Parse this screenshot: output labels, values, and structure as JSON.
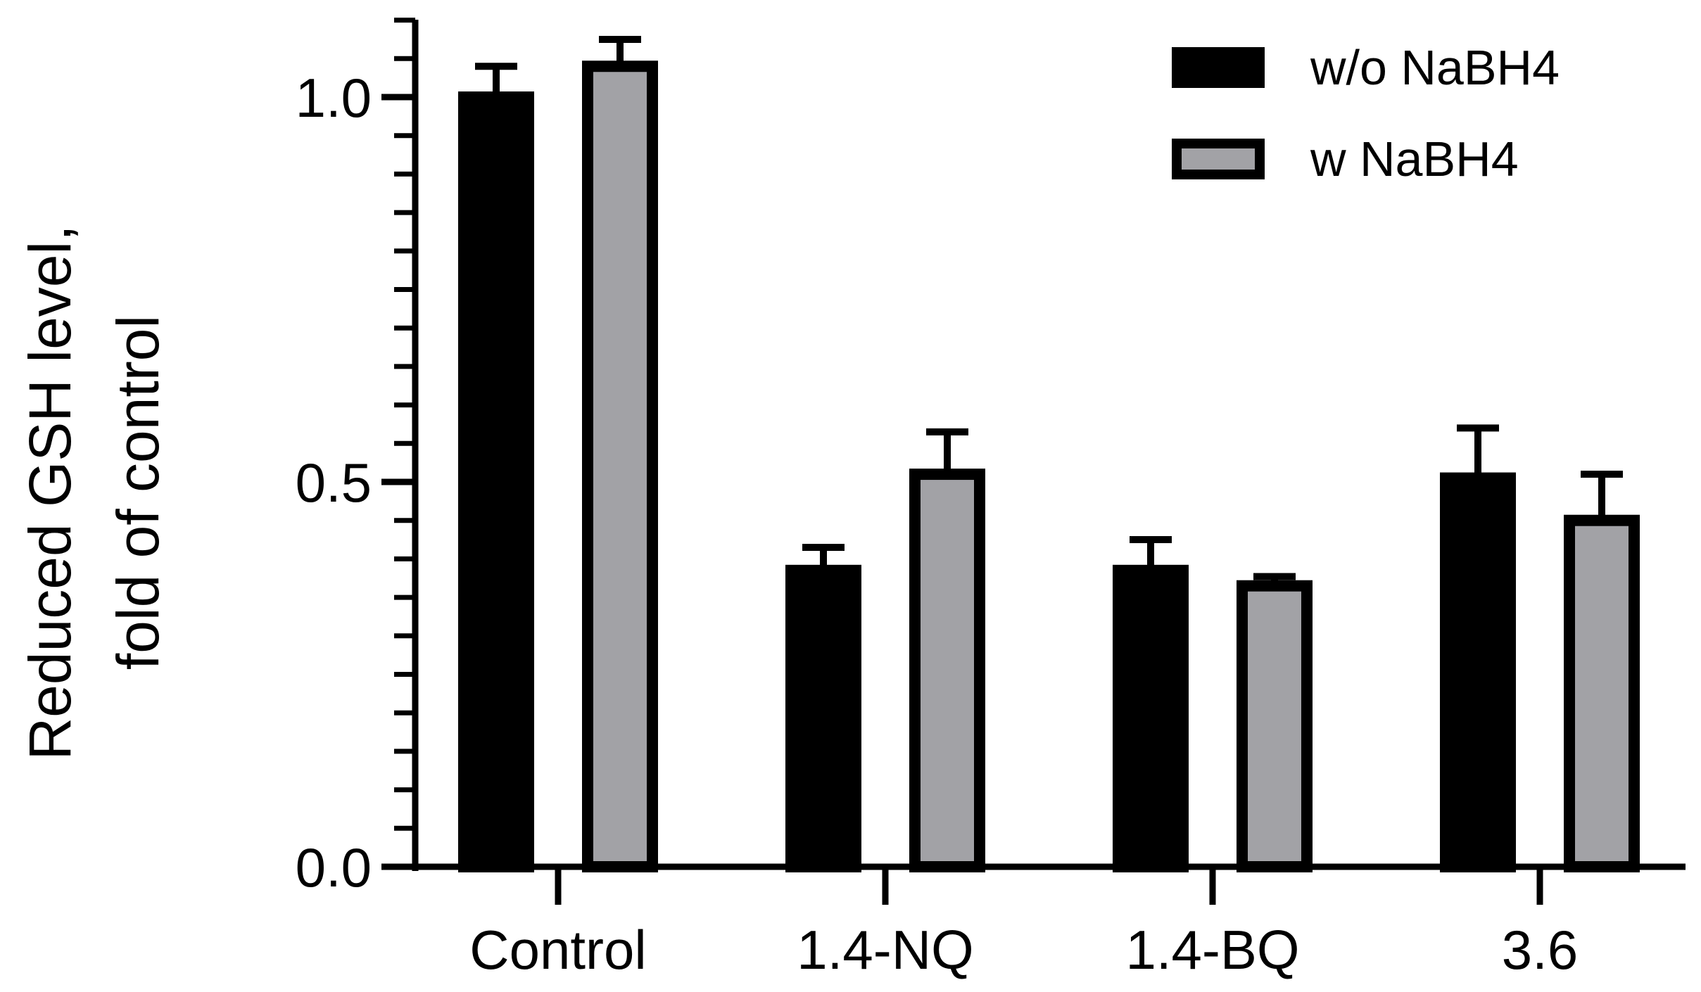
{
  "chart_data": {
    "type": "bar",
    "title": "",
    "xlabel": "",
    "ylabel_lines": [
      "Reduced GSH level,",
      "fold of control"
    ],
    "ylim": [
      0,
      1.1
    ],
    "major_ticks": [
      0.0,
      0.5,
      1.0
    ],
    "major_tick_labels": [
      "0.0",
      "0.5",
      "1.0"
    ],
    "minor_tick_step": 0.05,
    "categories": [
      "Control",
      "1.4-NQ",
      "1.4-BQ",
      "3.6"
    ],
    "series": [
      {
        "name": "w/o NaBH4",
        "color": "#000000",
        "values": [
          1.0,
          0.385,
          0.385,
          0.505
        ],
        "errors": [
          0.04,
          0.03,
          0.04,
          0.065
        ]
      },
      {
        "name": "w    NaBH4",
        "color": "#a2a2a6",
        "values": [
          1.04,
          0.51,
          0.365,
          0.45
        ],
        "errors": [
          0.035,
          0.055,
          0.012,
          0.06
        ]
      }
    ],
    "legend_position": "top-right",
    "grid": false
  },
  "colors": {
    "outline": "#000000",
    "gray_fill": "#a2a2a6"
  }
}
